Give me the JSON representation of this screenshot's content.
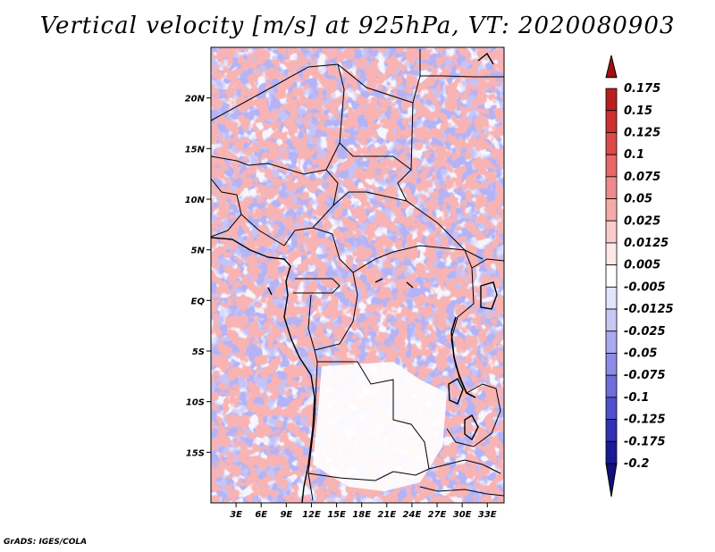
{
  "title": "Vertical velocity [m/s] at 925hPa, VT: 2020080903",
  "footer": "GrADS: IGES/COLA",
  "map": {
    "lon_range": [
      0,
      35
    ],
    "lat_range": [
      -20,
      25
    ],
    "lon_ticks": [
      "3E",
      "6E",
      "9E",
      "12E",
      "15E",
      "18E",
      "21E",
      "24E",
      "27E",
      "30E",
      "33E"
    ],
    "lat_ticks": [
      "20N",
      "15N",
      "10N",
      "5N",
      "EQ",
      "5S",
      "10S",
      "15S"
    ]
  },
  "colorbar": {
    "labels": [
      "0.175",
      "0.15",
      "0.125",
      "0.1",
      "0.075",
      "0.05",
      "0.025",
      "0.0125",
      "0.005",
      "-0.005",
      "-0.0125",
      "-0.025",
      "-0.05",
      "-0.075",
      "-0.1",
      "-0.125",
      "-0.175",
      "-0.2"
    ],
    "colors": [
      "#a01010",
      "#b82020",
      "#cc3030",
      "#dd4a4a",
      "#e86868",
      "#ef8a8a",
      "#f5aaaa",
      "#f9cccc",
      "#fde8e8",
      "#ffffff",
      "#e4e4fb",
      "#c8c8f5",
      "#aaaaee",
      "#8c8ce6",
      "#6e6edc",
      "#5050cc",
      "#3232b4",
      "#1a1a96",
      "#10107e"
    ]
  }
}
